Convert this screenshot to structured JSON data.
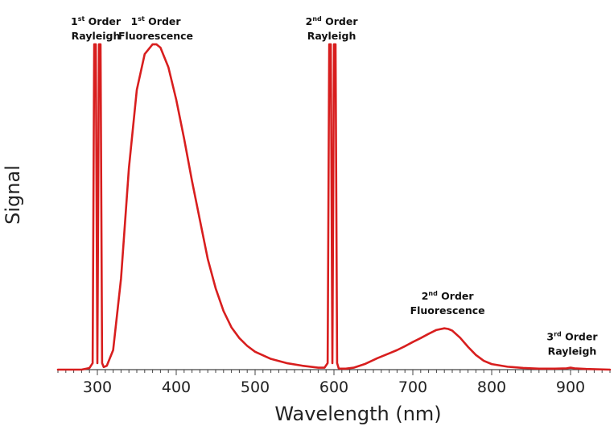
{
  "chart_data": {
    "type": "line",
    "title": "",
    "xlabel": "Wavelength (nm)",
    "ylabel": "Signal",
    "xlim": [
      250,
      950
    ],
    "ylim": [
      0,
      1.02
    ],
    "x_ticks": [
      300,
      400,
      500,
      600,
      700,
      800,
      900
    ],
    "x_tick_labels": [
      "300",
      "400",
      "500",
      "600",
      "700",
      "800",
      "900"
    ],
    "y_ticks_shown": false,
    "grid": false,
    "line_color": "#d81e1e",
    "series": [
      {
        "x": [
          250,
          280,
          290,
          294,
          296,
          298,
          300,
          302,
          304,
          306,
          308,
          312,
          320,
          330,
          340,
          350,
          360,
          370,
          375,
          380,
          390,
          400,
          410,
          420,
          430,
          440,
          450,
          460,
          470,
          480,
          490,
          500,
          520,
          540,
          560,
          580,
          588,
          592,
          594,
          596,
          598,
          600,
          602,
          604,
          606,
          608,
          615,
          625,
          640,
          655,
          665,
          670,
          680,
          690,
          700,
          710,
          720,
          730,
          740,
          745,
          750,
          760,
          770,
          780,
          790,
          800,
          820,
          840,
          860,
          880,
          895,
          900,
          905,
          920,
          950
        ],
        "y": [
          0.0,
          0.0,
          0.005,
          0.02,
          1.0,
          1.0,
          0.02,
          1.0,
          1.0,
          0.02,
          0.008,
          0.012,
          0.06,
          0.28,
          0.62,
          0.86,
          0.97,
          1.0,
          1.0,
          0.99,
          0.93,
          0.83,
          0.71,
          0.58,
          0.46,
          0.34,
          0.25,
          0.18,
          0.13,
          0.097,
          0.073,
          0.055,
          0.033,
          0.02,
          0.012,
          0.006,
          0.006,
          0.02,
          1.0,
          1.0,
          0.02,
          1.0,
          1.0,
          0.02,
          0.004,
          0.003,
          0.003,
          0.006,
          0.018,
          0.035,
          0.045,
          0.05,
          0.06,
          0.072,
          0.085,
          0.097,
          0.11,
          0.122,
          0.127,
          0.125,
          0.12,
          0.098,
          0.07,
          0.045,
          0.027,
          0.017,
          0.009,
          0.005,
          0.003,
          0.003,
          0.004,
          0.006,
          0.004,
          0.002,
          0.0
        ]
      }
    ],
    "annotations": [
      {
        "x": 298,
        "y": 1.06,
        "lines": [
          {
            "main": "1",
            "sup": "st",
            "rest": " Order"
          },
          {
            "main": "Rayleigh",
            "sup": "",
            "rest": ""
          }
        ]
      },
      {
        "x": 374,
        "y": 1.06,
        "lines": [
          {
            "main": "1",
            "sup": "st",
            "rest": " Order"
          },
          {
            "main": "Fluorescence",
            "sup": "",
            "rest": ""
          }
        ]
      },
      {
        "x": 597,
        "y": 1.06,
        "lines": [
          {
            "main": "2",
            "sup": "nd",
            "rest": " Order"
          },
          {
            "main": "Rayleigh",
            "sup": "",
            "rest": ""
          }
        ]
      },
      {
        "x": 744,
        "y": 0.215,
        "lines": [
          {
            "main": "2",
            "sup": "nd",
            "rest": " Order"
          },
          {
            "main": "Fluorescence",
            "sup": "",
            "rest": ""
          }
        ]
      },
      {
        "x": 902,
        "y": 0.09,
        "lines": [
          {
            "main": "3",
            "sup": "rd",
            "rest": " Order"
          },
          {
            "main": "Rayleigh",
            "sup": "",
            "rest": ""
          }
        ]
      }
    ]
  }
}
